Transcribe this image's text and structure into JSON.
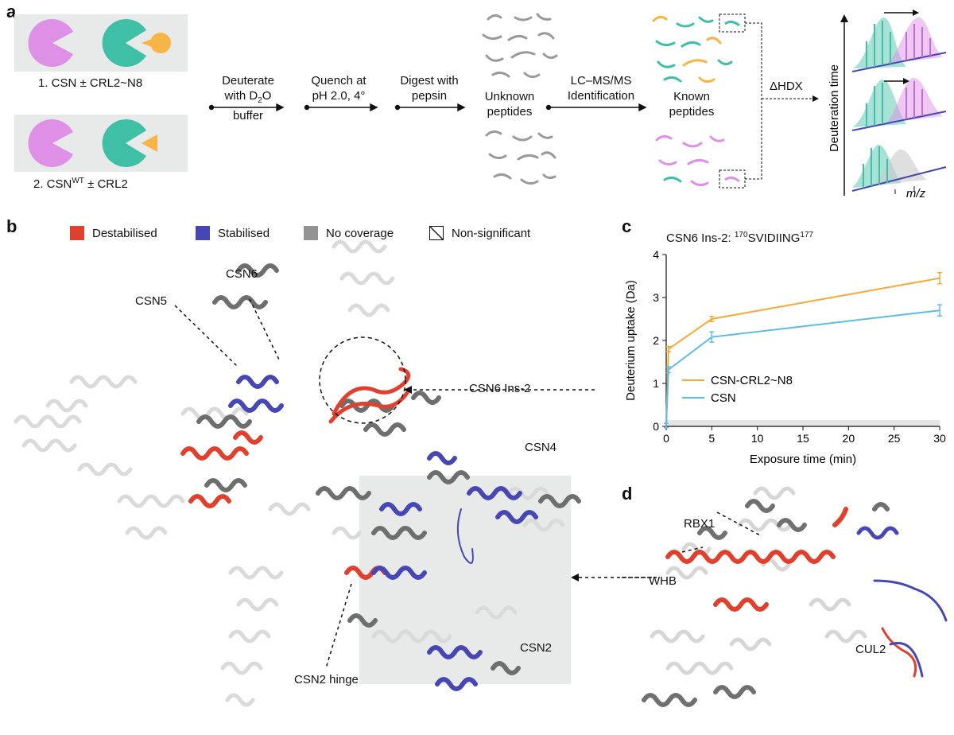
{
  "panels": {
    "a": "a",
    "b": "b",
    "c": "c",
    "d": "d"
  },
  "panel_a": {
    "box1_label_main": "1. CSN ± CRL2~N8",
    "box2_label_main": "2. CSN",
    "box2_label_sup": "WT",
    "box2_label_tail": " ± CRL2",
    "step1_line1": "Deuterate",
    "step1_line2_pre": "with D",
    "step1_line2_sub": "2",
    "step1_line2_post": "O buffer",
    "step2_line1": "Quench at",
    "step2_line2": "pH 2.0, 4°",
    "step3_line1": "Digest with",
    "step3_line2": "pepsin",
    "unknown_line1": "Unknown",
    "unknown_line2": "peptides",
    "step4_line1": "LC–MS/MS",
    "step4_line2": "Identification",
    "known_line1": "Known",
    "known_line2": "peptides",
    "dhdx": "ΔHDX",
    "y_axis": "Deuteration time",
    "x_axis": "m/z",
    "colors": {
      "magenta": "#de8fe6",
      "teal": "#3fbfa6",
      "orange": "#f7b547",
      "box": "#e8e9e9"
    }
  },
  "panel_b": {
    "legend": [
      {
        "label": "Destabilised",
        "color": "#e0402e"
      },
      {
        "label": "Stabilised",
        "color": "#4747b3"
      },
      {
        "label": "No coverage",
        "color": "#939393"
      },
      {
        "label": "Non-significant",
        "color": "#ffffff"
      }
    ],
    "labels": {
      "csn6": "CSN6",
      "csn5": "CSN5",
      "csn6ins": "CSN6 Ins-2",
      "csn4": "CSN4",
      "csn2": "CSN2",
      "csn2hinge": "CSN2 hinge"
    }
  },
  "panel_c": {
    "title_pre": "CSN6 Ins-2: ",
    "title_sup1": "170",
    "title_seq": "SVIDIING",
    "title_sup2": "177"
  },
  "chart_data": {
    "type": "line",
    "xlabel": "Exposure time (min)",
    "ylabel": "Deuterium uptake (Da)",
    "xlim": [
      0,
      30
    ],
    "ylim": [
      0,
      4
    ],
    "xticks": [
      0,
      5,
      10,
      15,
      20,
      25,
      30
    ],
    "yticks": [
      0,
      1,
      2,
      3,
      4
    ],
    "grid": false,
    "legend_position": "lower-left",
    "series": [
      {
        "name": "CSN-CRL2~N8",
        "color": "#f7a933",
        "x": [
          0,
          0.25,
          5,
          30
        ],
        "y": [
          0.02,
          1.8,
          2.5,
          3.45
        ],
        "err": [
          0.05,
          0.06,
          0.06,
          0.13
        ]
      },
      {
        "name": "CSN",
        "color": "#5bbde2",
        "x": [
          0,
          0.25,
          5,
          30
        ],
        "y": [
          0.02,
          1.32,
          2.08,
          2.7
        ],
        "err": [
          0.05,
          0.07,
          0.12,
          0.13
        ]
      }
    ]
  },
  "panel_d": {
    "labels": {
      "rbx1": "RBX1",
      "whb": "WHB",
      "cul2": "CUL2"
    }
  }
}
